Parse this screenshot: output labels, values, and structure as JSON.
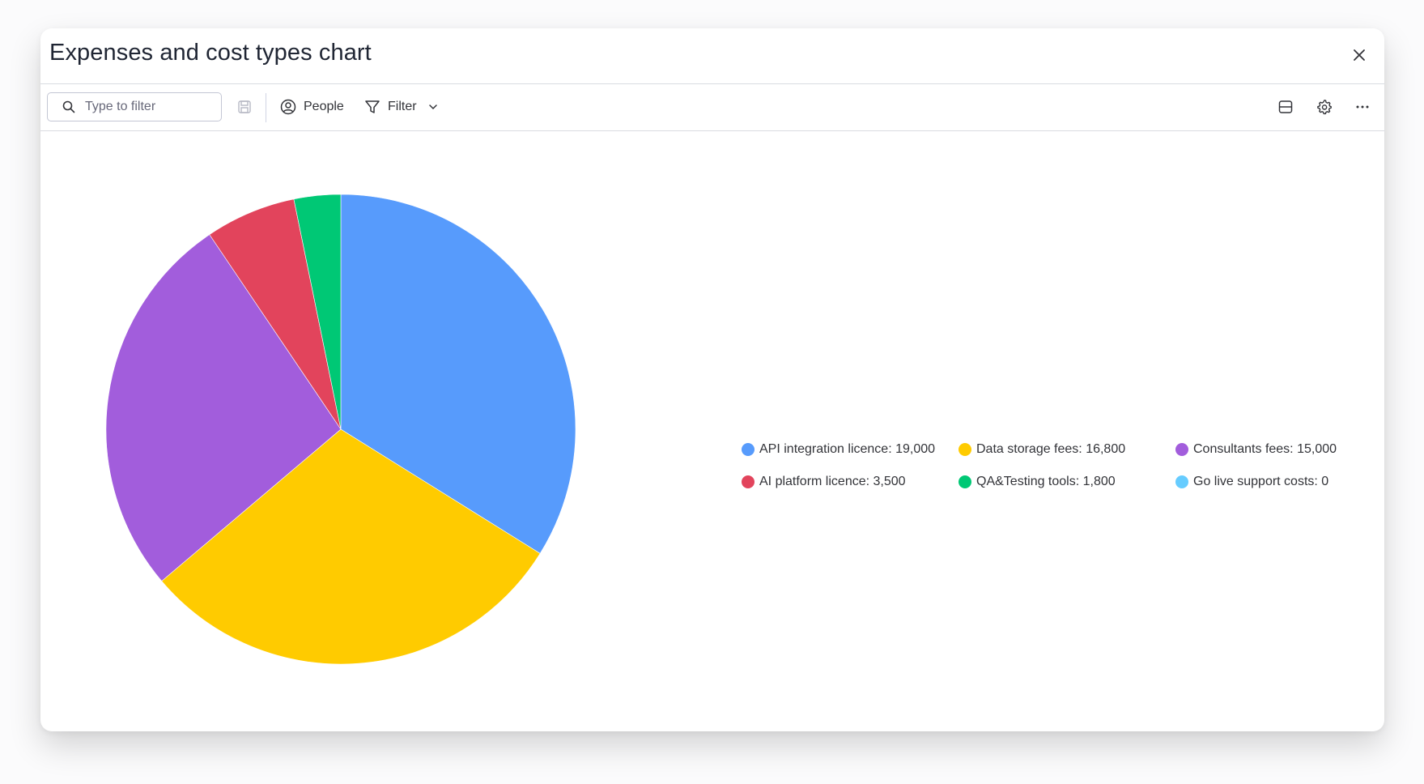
{
  "window": {
    "title": "Expenses and cost types chart"
  },
  "toolbar": {
    "search_placeholder": "Type to filter",
    "people_label": "People",
    "filter_label": "Filter"
  },
  "icons": {
    "close": "close-icon",
    "search": "search-icon",
    "save": "save-icon",
    "people": "person-circle-icon",
    "filter": "funnel-icon",
    "chevron": "chevron-down-icon",
    "layout": "layout-icon",
    "settings": "gear-icon",
    "more": "more-horizontal-icon"
  },
  "chart_data": {
    "type": "pie",
    "categories": [
      "API integration licence",
      "Data storage fees",
      "Consultants fees",
      "AI platform licence",
      "QA&Testing tools",
      "Go live support costs"
    ],
    "values": [
      19000,
      16800,
      15000,
      3500,
      1800,
      0
    ],
    "colors": [
      "#579bfc",
      "#ffcb00",
      "#a25ddc",
      "#e2445c",
      "#00c875",
      "#66ccff"
    ],
    "legend_labels": [
      "API integration licence: 19,000",
      "Data storage fees: 16,800",
      "Consultants fees: 15,000",
      "AI platform licence: 3,500",
      "QA&Testing tools: 1,800",
      "Go live support costs: 0"
    ],
    "legend_position": "right",
    "start_angle": "top",
    "direction": "clockwise"
  }
}
